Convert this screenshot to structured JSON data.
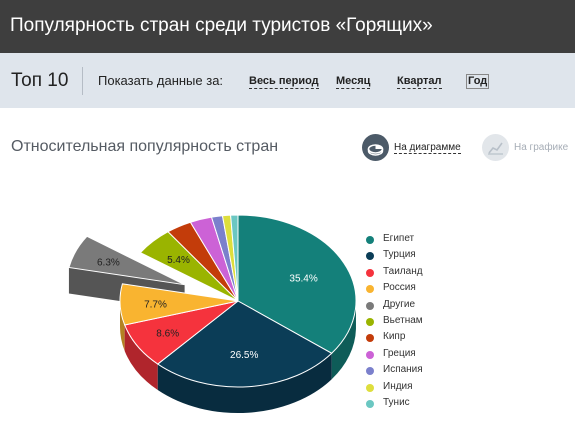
{
  "header": {
    "title": "Популярность стран среди туристов «Горящих»"
  },
  "filter": {
    "top_label": "Топ 10",
    "show_label": "Показать данные за:",
    "periods": [
      {
        "label": "Весь период",
        "active": false
      },
      {
        "label": "Месяц",
        "active": false
      },
      {
        "label": "Квартал",
        "active": false
      },
      {
        "label": "Год",
        "active": true
      }
    ]
  },
  "section": {
    "title": "Относительная популярность стран",
    "view_diagram": "На диаграмме",
    "view_graph": "На графике",
    "selected_view": "diagram"
  },
  "chart_data": {
    "type": "pie",
    "style": "3d",
    "legend_position": "right",
    "exploded": "Другие",
    "slices": [
      {
        "name": "Египет",
        "value": 35.4,
        "label": "35.4%",
        "color": "#14807a"
      },
      {
        "name": "Турция",
        "value": 26.5,
        "label": "26.5%",
        "color": "#0b3d57"
      },
      {
        "name": "Таиланд",
        "value": 8.6,
        "label": "8.6%",
        "color": "#f5333d"
      },
      {
        "name": "Россия",
        "value": 7.7,
        "label": "7.7%",
        "color": "#f9b430"
      },
      {
        "name": "Другие",
        "value": 6.3,
        "label": "6.3%",
        "color": "#7a7a7a"
      },
      {
        "name": "Вьетнам",
        "value": 5.4,
        "label": "5.4%",
        "color": "#9ab400"
      },
      {
        "name": "Кипр",
        "value": 3.5,
        "label": "",
        "color": "#c33c0a"
      },
      {
        "name": "Греция",
        "value": 3.0,
        "label": "",
        "color": "#cc62d6"
      },
      {
        "name": "Испания",
        "value": 1.5,
        "label": "",
        "color": "#7b80cc"
      },
      {
        "name": "Индия",
        "value": 1.1,
        "label": "",
        "color": "#dede3d"
      },
      {
        "name": "Тунис",
        "value": 1.0,
        "label": "",
        "color": "#6bc7c2"
      }
    ]
  }
}
